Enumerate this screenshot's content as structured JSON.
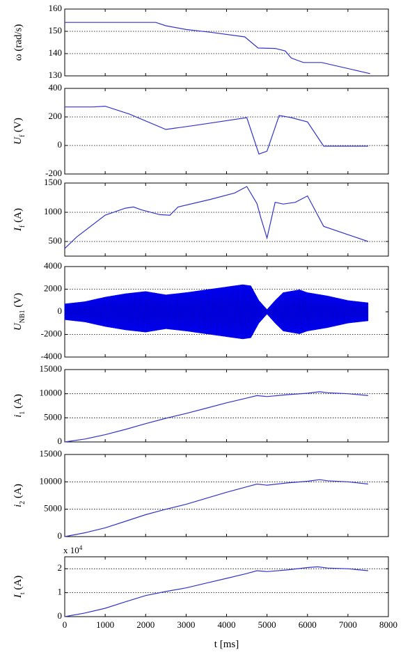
{
  "chart_data": [
    {
      "type": "line",
      "ylabel": "ω (rad/s)",
      "ylim": [
        130,
        160
      ],
      "yticks": [
        130,
        140,
        150,
        160
      ],
      "grid_lines": [
        140,
        150
      ],
      "series": [
        {
          "color": "#3333cc",
          "x": [
            0,
            2250,
            2500,
            3000,
            3600,
            4450,
            4780,
            5200,
            5450,
            5600,
            5900,
            6350,
            7550
          ],
          "y": [
            154,
            154,
            152.5,
            150.8,
            149.6,
            147.5,
            142.5,
            142.3,
            141.2,
            138,
            136,
            136,
            131
          ]
        }
      ]
    },
    {
      "type": "line",
      "ylabel": "U_f (V)",
      "ylim": [
        -200,
        400
      ],
      "yticks": [
        -200,
        0,
        200,
        400
      ],
      "grid_lines": [
        0,
        200
      ],
      "series": [
        {
          "color": "#3333cc",
          "x": [
            0,
            700,
            1000,
            1600,
            2500,
            3200,
            4500,
            4800,
            5000,
            5300,
            5600,
            6000,
            6400,
            7500
          ],
          "y": [
            270,
            270,
            275,
            220,
            112,
            140,
            195,
            -60,
            -40,
            210,
            195,
            165,
            -5,
            -5
          ]
        }
      ]
    },
    {
      "type": "line",
      "ylabel": "I_f (A)",
      "ylim": [
        250,
        1500
      ],
      "yticks": [
        500,
        1000,
        1500
      ],
      "grid_lines": [
        500,
        1000
      ],
      "series": [
        {
          "color": "#3333cc",
          "x": [
            0,
            300,
            1000,
            1500,
            1700,
            1900,
            2350,
            2600,
            2800,
            3600,
            4200,
            4500,
            4750,
            4850,
            5000,
            5200,
            5400,
            5700,
            6000,
            6400,
            7500
          ],
          "y": [
            380,
            580,
            950,
            1070,
            1090,
            1040,
            960,
            950,
            1090,
            1220,
            1330,
            1440,
            1150,
            900,
            560,
            1170,
            1140,
            1170,
            1280,
            760,
            500
          ]
        }
      ]
    },
    {
      "type": "area",
      "ylabel": "U_NB1 (V)",
      "ylim": [
        -4000,
        4000
      ],
      "yticks": [
        -4000,
        -2000,
        0,
        2000,
        4000
      ],
      "grid_lines": [
        2000,
        -2000
      ],
      "series": [
        {
          "color": "#0000ff",
          "x": [
            0,
            500,
            1000,
            1500,
            2000,
            2500,
            3000,
            3500,
            4000,
            4400,
            4600,
            4800,
            5000,
            5200,
            5400,
            5800,
            6000,
            6500,
            7000,
            7500
          ],
          "amplitude": [
            700,
            900,
            1300,
            1600,
            1800,
            1500,
            1700,
            1950,
            2200,
            2400,
            2300,
            1000,
            200,
            1000,
            1700,
            1950,
            1700,
            1400,
            1000,
            800
          ]
        }
      ]
    },
    {
      "type": "line",
      "ylabel": "i_1 (A)",
      "ylim": [
        0,
        15000
      ],
      "yticks": [
        0,
        5000,
        10000,
        15000
      ],
      "grid_lines": [
        5000,
        10000
      ],
      "series": [
        {
          "color": "#3333cc",
          "x": [
            0,
            500,
            1000,
            1500,
            2000,
            2500,
            3000,
            3500,
            4000,
            4500,
            4750,
            5000,
            5500,
            6000,
            6300,
            6500,
            7000,
            7500
          ],
          "y": [
            0,
            600,
            1500,
            2600,
            3800,
            4900,
            5900,
            7000,
            8100,
            9100,
            9600,
            9400,
            9800,
            10100,
            10400,
            10200,
            10000,
            9600
          ]
        }
      ]
    },
    {
      "type": "line",
      "ylabel": "i_2 (A)",
      "ylim": [
        0,
        15000
      ],
      "yticks": [
        0,
        5000,
        10000,
        15000
      ],
      "grid_lines": [
        5000,
        10000
      ],
      "series": [
        {
          "color": "#3333cc",
          "x": [
            0,
            500,
            1000,
            1500,
            2000,
            2500,
            3000,
            3500,
            4000,
            4500,
            4750,
            5000,
            5500,
            6000,
            6300,
            6500,
            7000,
            7500
          ],
          "y": [
            0,
            700,
            1600,
            2800,
            4000,
            5000,
            5900,
            7000,
            8100,
            9100,
            9600,
            9400,
            9800,
            10100,
            10400,
            10200,
            10000,
            9600
          ]
        }
      ]
    },
    {
      "type": "line",
      "ylabel": "I_t (A)",
      "ylim": [
        0,
        2.5
      ],
      "yticks": [
        0,
        1,
        2
      ],
      "grid_lines": [
        1,
        2
      ],
      "exponent_label": "x 10",
      "exponent_sup": "4",
      "xlabel": "t [ms]",
      "xlim": [
        0,
        8000
      ],
      "xticks": [
        0,
        1000,
        2000,
        3000,
        4000,
        5000,
        6000,
        7000,
        8000
      ],
      "series": [
        {
          "color": "#3333cc",
          "x": [
            0,
            500,
            1000,
            1500,
            2000,
            2500,
            3000,
            3500,
            4000,
            4500,
            4750,
            5000,
            5500,
            6000,
            6250,
            6500,
            7000,
            7500
          ],
          "y": [
            0,
            0.15,
            0.35,
            0.62,
            0.88,
            1.05,
            1.2,
            1.4,
            1.6,
            1.8,
            1.92,
            1.88,
            1.95,
            2.05,
            2.08,
            2.03,
            2.0,
            1.92
          ]
        }
      ]
    }
  ]
}
